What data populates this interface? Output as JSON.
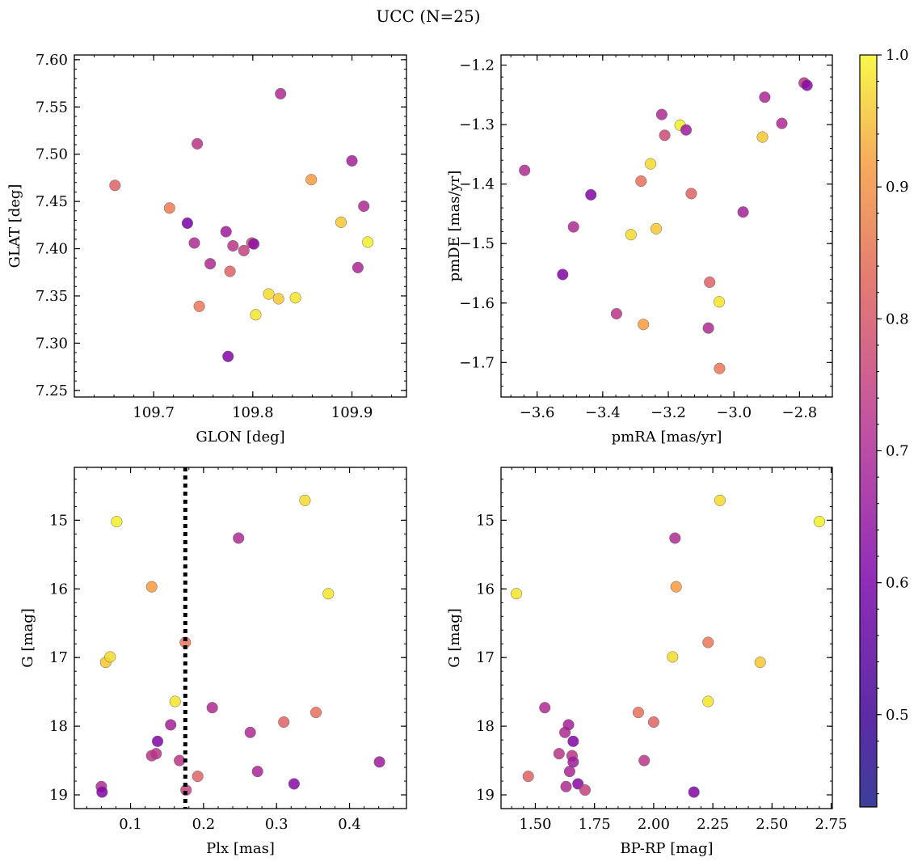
{
  "title": "UCC (N=25)",
  "colorbar": {
    "range": [
      0.43,
      1.0
    ],
    "ticks": [
      0.5,
      0.6,
      0.7,
      0.8,
      0.9,
      1.0
    ],
    "tick_labels": [
      "0.5",
      "0.6",
      "0.7",
      "0.8",
      "0.9",
      "1.0"
    ],
    "colormap": "plasma"
  },
  "chart_data": [
    {
      "id": "glon-glat",
      "type": "scatter",
      "xlabel": "GLON [deg]",
      "ylabel": "GLAT [deg]",
      "xlim": [
        109.62,
        109.955
      ],
      "ylim": [
        7.243,
        7.605
      ],
      "xticks": [
        109.7,
        109.8,
        109.9
      ],
      "xtick_labels": [
        "109.7",
        "109.8",
        "109.9"
      ],
      "yticks": [
        7.25,
        7.3,
        7.35,
        7.4,
        7.45,
        7.5,
        7.55,
        7.6
      ],
      "ytick_labels": [
        "7.25",
        "7.30",
        "7.35",
        "7.40",
        "7.45",
        "7.50",
        "7.55",
        "7.60"
      ],
      "invert_y": false,
      "points": [
        {
          "x": 109.661,
          "y": 7.467,
          "c": 0.72
        },
        {
          "x": 109.716,
          "y": 7.443,
          "c": 0.82
        },
        {
          "x": 109.734,
          "y": 7.427,
          "c": 0.44
        },
        {
          "x": 109.741,
          "y": 7.406,
          "c": 0.58
        },
        {
          "x": 109.744,
          "y": 7.511,
          "c": 0.6
        },
        {
          "x": 109.746,
          "y": 7.339,
          "c": 0.8
        },
        {
          "x": 109.757,
          "y": 7.384,
          "c": 0.58
        },
        {
          "x": 109.773,
          "y": 7.418,
          "c": 0.55
        },
        {
          "x": 109.775,
          "y": 7.286,
          "c": 0.46
        },
        {
          "x": 109.777,
          "y": 7.376,
          "c": 0.72
        },
        {
          "x": 109.78,
          "y": 7.403,
          "c": 0.6
        },
        {
          "x": 109.791,
          "y": 7.398,
          "c": 0.62
        },
        {
          "x": 109.799,
          "y": 7.406,
          "c": 0.64
        },
        {
          "x": 109.801,
          "y": 7.405,
          "c": 0.5
        },
        {
          "x": 109.803,
          "y": 7.33,
          "c": 0.98
        },
        {
          "x": 109.816,
          "y": 7.352,
          "c": 0.97
        },
        {
          "x": 109.826,
          "y": 7.347,
          "c": 0.95
        },
        {
          "x": 109.828,
          "y": 7.564,
          "c": 0.58
        },
        {
          "x": 109.843,
          "y": 7.348,
          "c": 0.98
        },
        {
          "x": 109.859,
          "y": 7.473,
          "c": 0.9
        },
        {
          "x": 109.889,
          "y": 7.428,
          "c": 0.95
        },
        {
          "x": 109.9,
          "y": 7.493,
          "c": 0.56
        },
        {
          "x": 109.906,
          "y": 7.38,
          "c": 0.57
        },
        {
          "x": 109.912,
          "y": 7.445,
          "c": 0.58
        },
        {
          "x": 109.916,
          "y": 7.407,
          "c": 0.99
        }
      ]
    },
    {
      "id": "pm",
      "type": "scatter",
      "xlabel": "pmRA [mas/yr]",
      "ylabel": "pmDE [mas/yr]",
      "xlim": [
        -3.71,
        -2.7
      ],
      "ylim": [
        -1.758,
        -1.183
      ],
      "xticks": [
        -3.6,
        -3.4,
        -3.2,
        -3.0,
        -2.8
      ],
      "xtick_labels": [
        "−3.6",
        "−3.4",
        "−3.2",
        "−3.0",
        "−2.8"
      ],
      "yticks": [
        -1.7,
        -1.6,
        -1.5,
        -1.4,
        -1.3,
        -1.2
      ],
      "ytick_labels": [
        "−1.7",
        "−1.6",
        "−1.5",
        "−1.4",
        "−1.3",
        "−1.2"
      ],
      "invert_y": false,
      "points": [
        {
          "x": -3.638,
          "y": -1.377,
          "c": 0.58
        },
        {
          "x": -3.522,
          "y": -1.552,
          "c": 0.46
        },
        {
          "x": -3.489,
          "y": -1.472,
          "c": 0.58
        },
        {
          "x": -3.436,
          "y": -1.418,
          "c": 0.46
        },
        {
          "x": -3.358,
          "y": -1.618,
          "c": 0.6
        },
        {
          "x": -3.314,
          "y": -1.485,
          "c": 0.97
        },
        {
          "x": -3.283,
          "y": -1.395,
          "c": 0.78
        },
        {
          "x": -3.276,
          "y": -1.636,
          "c": 0.9
        },
        {
          "x": -3.254,
          "y": -1.366,
          "c": 0.97
        },
        {
          "x": -3.237,
          "y": -1.475,
          "c": 0.95
        },
        {
          "x": -3.22,
          "y": -1.283,
          "c": 0.58
        },
        {
          "x": -3.211,
          "y": -1.318,
          "c": 0.64
        },
        {
          "x": -3.164,
          "y": -1.301,
          "c": 0.99
        },
        {
          "x": -3.146,
          "y": -1.309,
          "c": 0.55
        },
        {
          "x": -3.13,
          "y": -1.416,
          "c": 0.72
        },
        {
          "x": -3.078,
          "y": -1.642,
          "c": 0.58
        },
        {
          "x": -3.074,
          "y": -1.565,
          "c": 0.72
        },
        {
          "x": -3.045,
          "y": -1.598,
          "c": 0.98
        },
        {
          "x": -3.044,
          "y": -1.71,
          "c": 0.8
        },
        {
          "x": -2.972,
          "y": -1.447,
          "c": 0.56
        },
        {
          "x": -2.913,
          "y": -1.321,
          "c": 0.95
        },
        {
          "x": -2.906,
          "y": -1.254,
          "c": 0.57
        },
        {
          "x": -2.854,
          "y": -1.298,
          "c": 0.58
        },
        {
          "x": -2.786,
          "y": -1.23,
          "c": 0.6
        },
        {
          "x": -2.777,
          "y": -1.234,
          "c": 0.48
        }
      ]
    },
    {
      "id": "plx-g",
      "type": "scatter",
      "xlabel": "Plx [mas]",
      "ylabel": "G [mag]",
      "xlim": [
        0.023,
        0.478
      ],
      "ylim": [
        14.23,
        19.2
      ],
      "xticks": [
        0.1,
        0.2,
        0.3,
        0.4
      ],
      "xtick_labels": [
        "0.1",
        "0.2",
        "0.3",
        "0.4"
      ],
      "yticks": [
        15,
        16,
        17,
        18,
        19
      ],
      "ytick_labels": [
        "15",
        "16",
        "17",
        "18",
        "19"
      ],
      "invert_y": true,
      "vline": 0.175,
      "points": [
        {
          "x": 0.06,
          "y": 18.88,
          "c": 0.58
        },
        {
          "x": 0.061,
          "y": 18.96,
          "c": 0.46
        },
        {
          "x": 0.066,
          "y": 17.07,
          "c": 0.95
        },
        {
          "x": 0.072,
          "y": 16.99,
          "c": 0.97
        },
        {
          "x": 0.081,
          "y": 15.02,
          "c": 0.99
        },
        {
          "x": 0.129,
          "y": 15.97,
          "c": 0.9
        },
        {
          "x": 0.129,
          "y": 18.43,
          "c": 0.6
        },
        {
          "x": 0.135,
          "y": 18.4,
          "c": 0.6
        },
        {
          "x": 0.137,
          "y": 18.22,
          "c": 0.46
        },
        {
          "x": 0.155,
          "y": 17.98,
          "c": 0.56
        },
        {
          "x": 0.161,
          "y": 17.64,
          "c": 0.98
        },
        {
          "x": 0.167,
          "y": 18.5,
          "c": 0.6
        },
        {
          "x": 0.175,
          "y": 16.78,
          "c": 0.8
        },
        {
          "x": 0.176,
          "y": 18.93,
          "c": 0.62
        },
        {
          "x": 0.192,
          "y": 18.73,
          "c": 0.72
        },
        {
          "x": 0.212,
          "y": 17.73,
          "c": 0.58
        },
        {
          "x": 0.248,
          "y": 15.26,
          "c": 0.58
        },
        {
          "x": 0.264,
          "y": 18.09,
          "c": 0.58
        },
        {
          "x": 0.274,
          "y": 18.66,
          "c": 0.57
        },
        {
          "x": 0.31,
          "y": 17.94,
          "c": 0.72
        },
        {
          "x": 0.324,
          "y": 18.84,
          "c": 0.48
        },
        {
          "x": 0.339,
          "y": 14.71,
          "c": 0.97
        },
        {
          "x": 0.354,
          "y": 17.8,
          "c": 0.78
        },
        {
          "x": 0.371,
          "y": 16.07,
          "c": 0.98
        },
        {
          "x": 0.441,
          "y": 18.52,
          "c": 0.55
        }
      ]
    },
    {
      "id": "color-g",
      "type": "scatter",
      "xlabel": "BP-RP [mag]",
      "ylabel": "G [mag]",
      "xlim": [
        1.355,
        2.755
      ],
      "ylim": [
        14.23,
        19.2
      ],
      "xticks": [
        1.5,
        1.75,
        2.0,
        2.25,
        2.5,
        2.75
      ],
      "xtick_labels": [
        "1.50",
        "1.75",
        "2.00",
        "2.25",
        "2.50",
        "2.75"
      ],
      "yticks": [
        15,
        16,
        17,
        18,
        19
      ],
      "ytick_labels": [
        "15",
        "16",
        "17",
        "18",
        "19"
      ],
      "invert_y": true,
      "points": [
        {
          "x": 1.42,
          "y": 16.07,
          "c": 0.98
        },
        {
          "x": 1.47,
          "y": 18.73,
          "c": 0.72
        },
        {
          "x": 1.54,
          "y": 17.73,
          "c": 0.58
        },
        {
          "x": 1.6,
          "y": 18.4,
          "c": 0.6
        },
        {
          "x": 1.625,
          "y": 18.09,
          "c": 0.58
        },
        {
          "x": 1.63,
          "y": 18.88,
          "c": 0.58
        },
        {
          "x": 1.64,
          "y": 17.98,
          "c": 0.56
        },
        {
          "x": 1.645,
          "y": 18.66,
          "c": 0.57
        },
        {
          "x": 1.655,
          "y": 18.43,
          "c": 0.6
        },
        {
          "x": 1.66,
          "y": 18.22,
          "c": 0.46
        },
        {
          "x": 1.66,
          "y": 18.52,
          "c": 0.55
        },
        {
          "x": 1.68,
          "y": 18.84,
          "c": 0.48
        },
        {
          "x": 1.71,
          "y": 18.93,
          "c": 0.62
        },
        {
          "x": 1.935,
          "y": 17.8,
          "c": 0.78
        },
        {
          "x": 1.96,
          "y": 18.5,
          "c": 0.6
        },
        {
          "x": 2.0,
          "y": 17.94,
          "c": 0.72
        },
        {
          "x": 2.08,
          "y": 16.99,
          "c": 0.97
        },
        {
          "x": 2.09,
          "y": 15.26,
          "c": 0.58
        },
        {
          "x": 2.095,
          "y": 15.97,
          "c": 0.9
        },
        {
          "x": 2.17,
          "y": 18.96,
          "c": 0.46
        },
        {
          "x": 2.23,
          "y": 16.78,
          "c": 0.8
        },
        {
          "x": 2.23,
          "y": 17.64,
          "c": 0.98
        },
        {
          "x": 2.28,
          "y": 14.71,
          "c": 0.97
        },
        {
          "x": 2.45,
          "y": 17.07,
          "c": 0.95
        },
        {
          "x": 2.7,
          "y": 15.02,
          "c": 0.99
        }
      ]
    }
  ]
}
